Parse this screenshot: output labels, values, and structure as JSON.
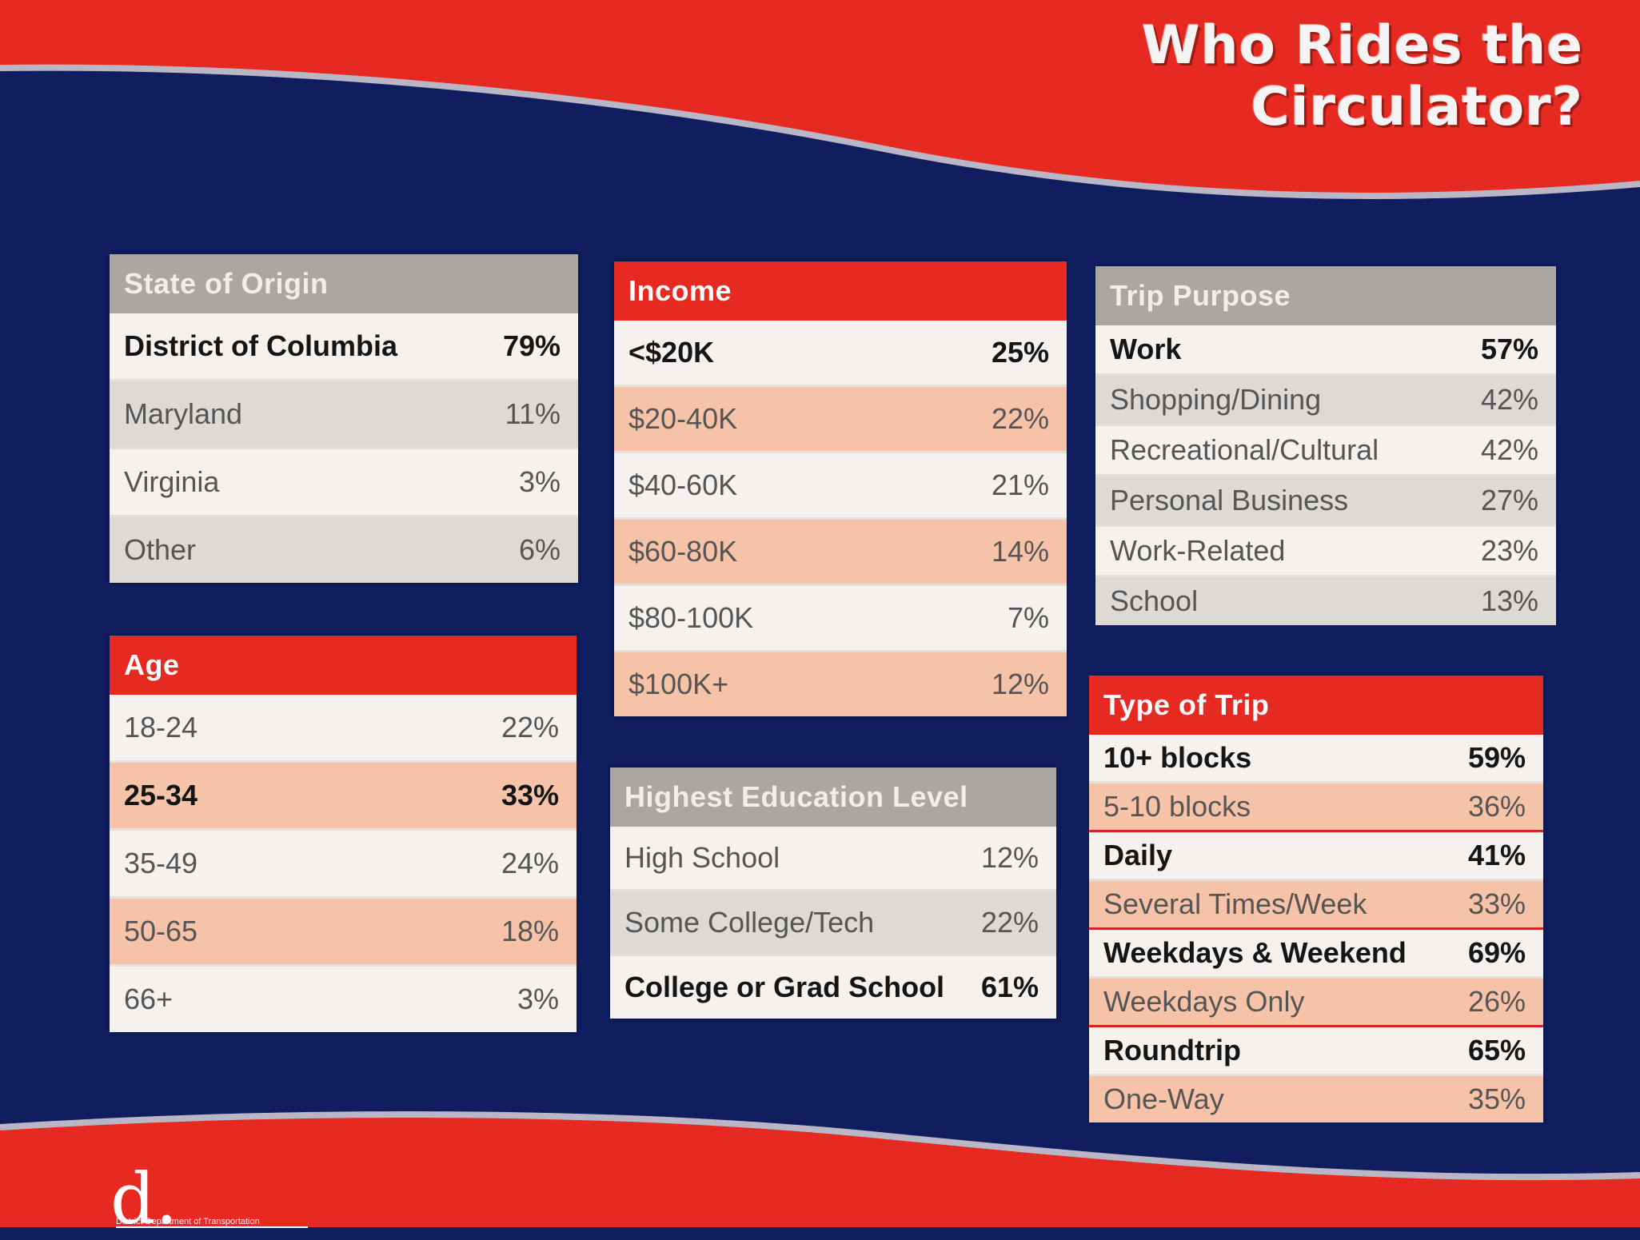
{
  "title": "Who Rides the Circulator?",
  "colors": {
    "red": "#e62921",
    "navy": "#101d5e",
    "peach": "#f6c3a8",
    "gray_header": "#aaa6a3"
  },
  "logo": {
    "mark": "d.",
    "text": "District Department of Transportation"
  },
  "state_of_origin": {
    "header": "State of Origin",
    "rows": [
      {
        "label": "District of Columbia",
        "value": "79%"
      },
      {
        "label": "Maryland",
        "value": "11%"
      },
      {
        "label": "Virginia",
        "value": "3%"
      },
      {
        "label": "Other",
        "value": "6%"
      }
    ]
  },
  "age": {
    "header": "Age",
    "rows": [
      {
        "label": "18-24",
        "value": "22%"
      },
      {
        "label": "25-34",
        "value": "33%"
      },
      {
        "label": "35-49",
        "value": "24%"
      },
      {
        "label": "50-65",
        "value": "18%"
      },
      {
        "label": "66+",
        "value": "3%"
      }
    ]
  },
  "income": {
    "header": "Income",
    "rows": [
      {
        "label": "<$20K",
        "value": "25%"
      },
      {
        "label": "$20-40K",
        "value": "22%"
      },
      {
        "label": "$40-60K",
        "value": "21%"
      },
      {
        "label": "$60-80K",
        "value": "14%"
      },
      {
        "label": "$80-100K",
        "value": "7%"
      },
      {
        "label": "$100K+",
        "value": "12%"
      }
    ]
  },
  "education": {
    "header": "Highest Education Level",
    "rows": [
      {
        "label": "High School",
        "value": "12%"
      },
      {
        "label": "Some College/Tech",
        "value": "22%"
      },
      {
        "label": "College or Grad School",
        "value": "61%"
      }
    ]
  },
  "trip_purpose": {
    "header": "Trip Purpose",
    "rows": [
      {
        "label": "Work",
        "value": "57%"
      },
      {
        "label": "Shopping/Dining",
        "value": "42%"
      },
      {
        "label": "Recreational/Cultural",
        "value": "42%"
      },
      {
        "label": "Personal Business",
        "value": "27%"
      },
      {
        "label": "Work-Related",
        "value": "23%"
      },
      {
        "label": "School",
        "value": "13%"
      }
    ]
  },
  "type_of_trip": {
    "header": "Type of Trip",
    "rows": [
      {
        "label": "10+ blocks",
        "value": "59%"
      },
      {
        "label": "5-10 blocks",
        "value": "36%"
      },
      {
        "label": "Daily",
        "value": "41%"
      },
      {
        "label": "Several Times/Week",
        "value": "33%"
      },
      {
        "label": "Weekdays & Weekend",
        "value": "69%"
      },
      {
        "label": "Weekdays Only",
        "value": "26%"
      },
      {
        "label": "Roundtrip",
        "value": "65%"
      },
      {
        "label": "One-Way",
        "value": "35%"
      }
    ]
  }
}
